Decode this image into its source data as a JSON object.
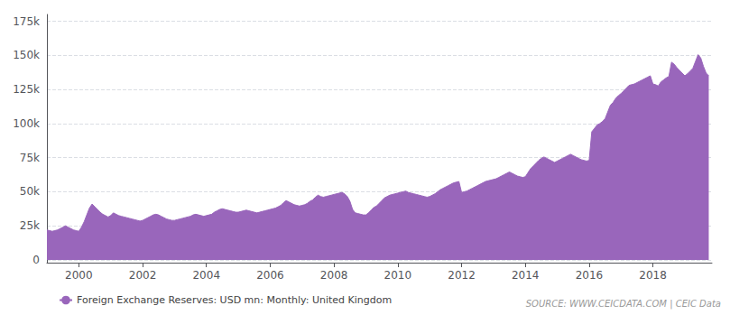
{
  "chart_data": {
    "type": "area",
    "series": [
      {
        "name": "Foreign Exchange Reserves: USD mn: Monthly: United Kingdom",
        "color": "#9966BB",
        "values": [
          22000,
          21500,
          21000,
          21500,
          22000,
          23000,
          24000,
          25000,
          24000,
          23000,
          22000,
          21500,
          21000,
          24000,
          28000,
          33000,
          38000,
          41000,
          39000,
          37000,
          35000,
          33500,
          32500,
          31500,
          32500,
          34500,
          33500,
          32500,
          32000,
          31500,
          31000,
          30500,
          30000,
          29500,
          29000,
          28500,
          29000,
          30000,
          31000,
          32000,
          33000,
          33500,
          33000,
          32000,
          31000,
          30000,
          29500,
          29000,
          29000,
          29500,
          30000,
          30500,
          31000,
          31500,
          32000,
          33000,
          33500,
          33000,
          32500,
          32000,
          32500,
          33000,
          33500,
          35000,
          36000,
          37000,
          37500,
          37000,
          36500,
          36000,
          35500,
          35000,
          35000,
          35500,
          36000,
          36500,
          36000,
          35500,
          35000,
          34500,
          35000,
          35500,
          36000,
          36500,
          37000,
          37500,
          38000,
          39000,
          40000,
          42000,
          43500,
          42500,
          41500,
          40500,
          40000,
          39500,
          40000,
          40500,
          41500,
          43000,
          44000,
          46000,
          47500,
          46500,
          46000,
          46500,
          47000,
          47500,
          48000,
          48500,
          49000,
          49500,
          48500,
          46500,
          43000,
          37000,
          34500,
          34000,
          33500,
          33000,
          33000,
          34500,
          36500,
          38500,
          39500,
          41500,
          43500,
          45500,
          46500,
          47500,
          48000,
          48500,
          49000,
          49500,
          50000,
          50500,
          49500,
          49000,
          48500,
          48000,
          47500,
          47000,
          46500,
          46000,
          46500,
          47500,
          48500,
          50000,
          51500,
          52500,
          53500,
          54500,
          55500,
          56500,
          57000,
          57500,
          49500,
          50000,
          50500,
          51500,
          52500,
          53500,
          54500,
          55500,
          56500,
          57500,
          58000,
          58500,
          59000,
          59500,
          60500,
          61500,
          62500,
          63500,
          64500,
          63500,
          62500,
          61500,
          61000,
          60500,
          61000,
          64000,
          67000,
          69000,
          71000,
          73000,
          74500,
          75500,
          74500,
          73500,
          72500,
          71500,
          72500,
          73500,
          74500,
          75500,
          76500,
          77500,
          76500,
          75500,
          74500,
          73500,
          73000,
          72500,
          73000,
          94000,
          96500,
          99000,
          100000,
          101500,
          103500,
          108500,
          113500,
          115500,
          118500,
          120500,
          122000,
          124000,
          126000,
          128000,
          128500,
          129000,
          130000,
          131000,
          132000,
          133000,
          134000,
          135000,
          129000,
          128500,
          127500,
          130500,
          132000,
          133500,
          134500,
          145000,
          143500,
          141000,
          139000,
          137000,
          135000,
          136500,
          138500,
          140500,
          145500,
          150500,
          148000,
          142000,
          137000,
          135000
        ]
      }
    ],
    "x": [
      1999.0,
      1999.083,
      1999.167,
      1999.25,
      1999.333,
      1999.417,
      1999.5,
      1999.583,
      1999.667,
      1999.75,
      1999.833,
      1999.917,
      2000.0,
      2000.083,
      2000.167,
      2000.25,
      2000.333,
      2000.417,
      2000.5,
      2000.583,
      2000.667,
      2000.75,
      2000.833,
      2000.917,
      2001.0,
      2001.083,
      2001.167,
      2001.25,
      2001.333,
      2001.417,
      2001.5,
      2001.583,
      2001.667,
      2001.75,
      2001.833,
      2001.917,
      2002.0,
      2002.083,
      2002.167,
      2002.25,
      2002.333,
      2002.417,
      2002.5,
      2002.583,
      2002.667,
      2002.75,
      2002.833,
      2002.917,
      2003.0,
      2003.083,
      2003.167,
      2003.25,
      2003.333,
      2003.417,
      2003.5,
      2003.583,
      2003.667,
      2003.75,
      2003.833,
      2003.917,
      2004.0,
      2004.083,
      2004.167,
      2004.25,
      2004.333,
      2004.417,
      2004.5,
      2004.583,
      2004.667,
      2004.75,
      2004.833,
      2004.917,
      2005.0,
      2005.083,
      2005.167,
      2005.25,
      2005.333,
      2005.417,
      2005.5,
      2005.583,
      2005.667,
      2005.75,
      2005.833,
      2005.917,
      2006.0,
      2006.083,
      2006.167,
      2006.25,
      2006.333,
      2006.417,
      2006.5,
      2006.583,
      2006.667,
      2006.75,
      2006.833,
      2006.917,
      2007.0,
      2007.083,
      2007.167,
      2007.25,
      2007.333,
      2007.417,
      2007.5,
      2007.583,
      2007.667,
      2007.75,
      2007.833,
      2007.917,
      2008.0,
      2008.083,
      2008.167,
      2008.25,
      2008.333,
      2008.417,
      2008.5,
      2008.583,
      2008.667,
      2008.75,
      2008.833,
      2008.917,
      2009.0,
      2009.083,
      2009.167,
      2009.25,
      2009.333,
      2009.417,
      2009.5,
      2009.583,
      2009.667,
      2009.75,
      2009.833,
      2009.917,
      2010.0,
      2010.083,
      2010.167,
      2010.25,
      2010.333,
      2010.417,
      2010.5,
      2010.583,
      2010.667,
      2010.75,
      2010.833,
      2010.917,
      2011.0,
      2011.083,
      2011.167,
      2011.25,
      2011.333,
      2011.417,
      2011.5,
      2011.583,
      2011.667,
      2011.75,
      2011.833,
      2011.917,
      2012.0,
      2012.083,
      2012.167,
      2012.25,
      2012.333,
      2012.417,
      2012.5,
      2012.583,
      2012.667,
      2012.75,
      2012.833,
      2012.917,
      2013.0,
      2013.083,
      2013.167,
      2013.25,
      2013.333,
      2013.417,
      2013.5,
      2013.583,
      2013.667,
      2013.75,
      2013.833,
      2013.917,
      2014.0,
      2014.083,
      2014.167,
      2014.25,
      2014.333,
      2014.417,
      2014.5,
      2014.583,
      2014.667,
      2014.75,
      2014.833,
      2014.917,
      2015.0,
      2015.083,
      2015.167,
      2015.25,
      2015.333,
      2015.417,
      2015.5,
      2015.583,
      2015.667,
      2015.75,
      2015.833,
      2015.917,
      2016.0,
      2016.083,
      2016.167,
      2016.25,
      2016.333,
      2016.417,
      2016.5,
      2016.583,
      2016.667,
      2016.75,
      2016.833,
      2016.917,
      2017.0,
      2017.083,
      2017.167,
      2017.25,
      2017.333,
      2017.417,
      2017.5,
      2017.583,
      2017.667,
      2017.75,
      2017.833,
      2017.917,
      2018.0,
      2018.083,
      2018.167,
      2018.25,
      2018.333,
      2018.417,
      2018.5,
      2018.583,
      2018.667,
      2018.75,
      2018.833,
      2018.917,
      2019.0,
      2019.083,
      2019.167,
      2019.25,
      2019.333,
      2019.417,
      2019.5,
      2019.583,
      2019.667,
      2019.75
    ],
    "xlim": [
      1999.0,
      2019.85
    ],
    "xticks": [
      2000,
      2002,
      2004,
      2006,
      2008,
      2010,
      2012,
      2014,
      2016,
      2018
    ],
    "ylim": [
      -2000,
      180000
    ],
    "yticks": [
      0,
      {
        "value": 25000,
        "label": "25k"
      },
      {
        "value": 50000,
        "label": "50k"
      },
      {
        "value": 75000,
        "label": "75k"
      },
      {
        "value": 100000,
        "label": "100k"
      },
      {
        "value": 125000,
        "label": "125k"
      },
      {
        "value": 150000,
        "label": "150k"
      },
      {
        "value": 175000,
        "label": "175k"
      }
    ],
    "grid": true,
    "legend": "bottom",
    "annotations": [
      "SOURCE: WWW.CEICDATA.COM | CEIC Data"
    ]
  }
}
